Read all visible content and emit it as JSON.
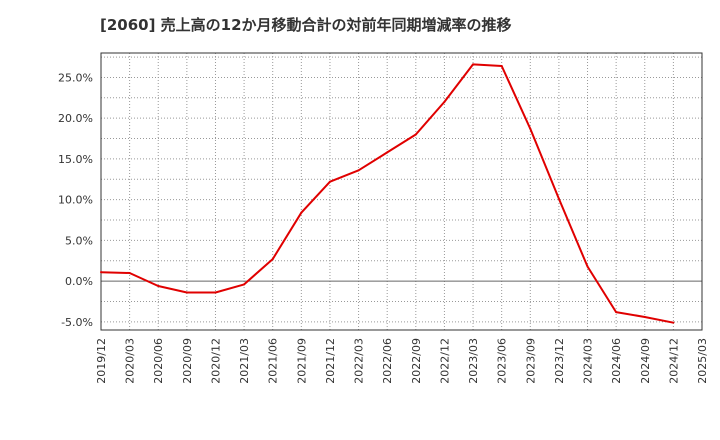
{
  "chart_data": {
    "type": "line",
    "title": "[2060]  売上高の12か月移動合計の対前年同期増減率の推移",
    "xlabel": "",
    "ylabel": "",
    "ylim": [
      -6,
      28
    ],
    "yticks": [
      -5,
      0,
      5,
      10,
      15,
      20,
      25
    ],
    "ytick_labels": [
      "-5.0%",
      "0.0%",
      "5.0%",
      "10.0%",
      "15.0%",
      "20.0%",
      "25.0%"
    ],
    "categories": [
      "2019/12",
      "2020/03",
      "2020/06",
      "2020/09",
      "2020/12",
      "2021/03",
      "2021/06",
      "2021/09",
      "2021/12",
      "2022/03",
      "2022/06",
      "2022/09",
      "2022/12",
      "2023/03",
      "2023/06",
      "2023/09",
      "2023/12",
      "2024/03",
      "2024/06",
      "2024/09",
      "2024/12",
      "2025/03"
    ],
    "series": [
      {
        "name": "対前年同期増減率",
        "color": "#e00000",
        "values": [
          1.1,
          1.0,
          -0.6,
          -1.4,
          -1.4,
          -0.4,
          2.7,
          8.4,
          12.2,
          13.6,
          15.8,
          18.0,
          22.0,
          26.6,
          26.4,
          18.7,
          10.1,
          1.8,
          -3.8,
          -4.4,
          -5.1,
          null
        ]
      }
    ],
    "grid": true,
    "zero_line": true
  }
}
